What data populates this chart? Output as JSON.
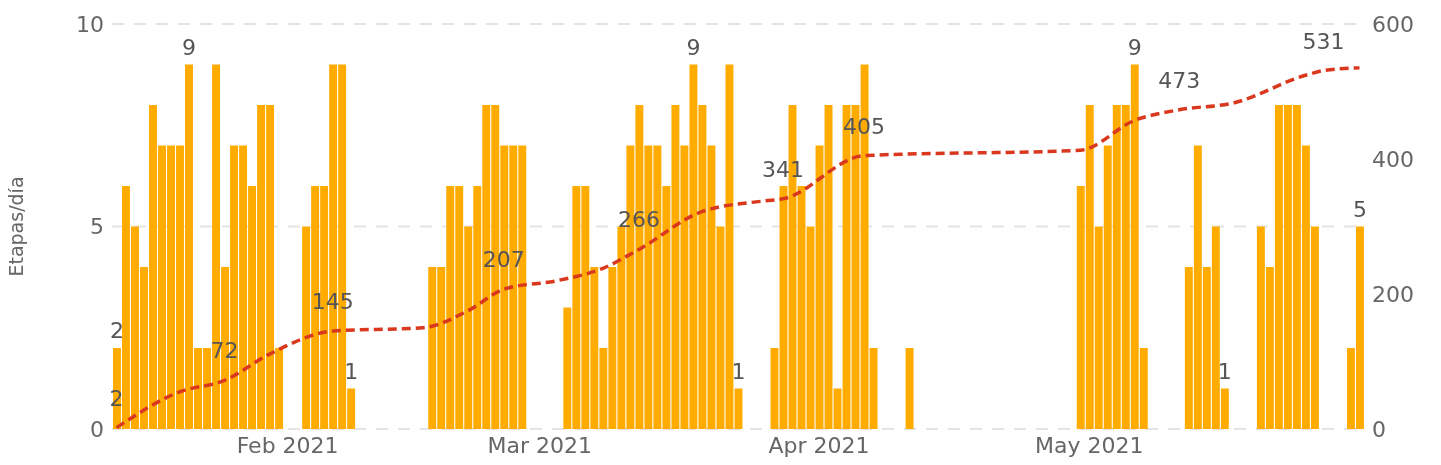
{
  "chart_data": {
    "type": "bar",
    "ylabel": "Etapas/día",
    "x": [
      "2021-01-13",
      "2021-01-14",
      "2021-01-15",
      "2021-01-16",
      "2021-01-17",
      "2021-01-18",
      "2021-01-19",
      "2021-01-20",
      "2021-01-21",
      "2021-01-22",
      "2021-01-23",
      "2021-01-24",
      "2021-01-25",
      "2021-01-26",
      "2021-01-27",
      "2021-01-28",
      "2021-01-29",
      "2021-01-30",
      "2021-01-31",
      "2021-02-03",
      "2021-02-04",
      "2021-02-05",
      "2021-02-06",
      "2021-02-07",
      "2021-02-08",
      "2021-02-17",
      "2021-02-18",
      "2021-02-19",
      "2021-02-20",
      "2021-02-21",
      "2021-02-22",
      "2021-02-23",
      "2021-02-24",
      "2021-02-25",
      "2021-02-26",
      "2021-02-27",
      "2021-03-04",
      "2021-03-05",
      "2021-03-06",
      "2021-03-07",
      "2021-03-08",
      "2021-03-09",
      "2021-03-10",
      "2021-03-11",
      "2021-03-12",
      "2021-03-13",
      "2021-03-14",
      "2021-03-15",
      "2021-03-16",
      "2021-03-17",
      "2021-03-18",
      "2021-03-19",
      "2021-03-20",
      "2021-03-21",
      "2021-03-22",
      "2021-03-23",
      "2021-03-27",
      "2021-03-28",
      "2021-03-29",
      "2021-03-30",
      "2021-03-31",
      "2021-04-01",
      "2021-04-02",
      "2021-04-03",
      "2021-04-04",
      "2021-04-05",
      "2021-04-06",
      "2021-04-07",
      "2021-04-11",
      "2021-04-30",
      "2021-05-01",
      "2021-05-02",
      "2021-05-03",
      "2021-05-04",
      "2021-05-05",
      "2021-05-06",
      "2021-05-07",
      "2021-05-12",
      "2021-05-13",
      "2021-05-14",
      "2021-05-15",
      "2021-05-16",
      "2021-05-20",
      "2021-05-21",
      "2021-05-22",
      "2021-05-23",
      "2021-05-24",
      "2021-05-25",
      "2021-05-26",
      "2021-05-30",
      "2021-05-31"
    ],
    "series": [
      {
        "color": "#ffab00",
        "values": [
          2,
          6,
          5,
          4,
          8,
          7,
          7,
          7,
          9,
          2,
          2,
          9,
          4,
          7,
          7,
          6,
          8,
          8,
          2,
          5,
          6,
          6,
          9,
          9,
          1,
          4,
          4,
          6,
          6,
          5,
          6,
          8,
          8,
          7,
          7,
          7,
          3,
          6,
          6,
          4,
          2,
          4,
          5,
          7,
          8,
          7,
          7,
          6,
          8,
          7,
          9,
          8,
          7,
          5,
          9,
          1,
          2,
          6,
          8,
          6,
          5,
          7,
          8,
          1,
          8,
          8,
          9,
          2,
          2,
          6,
          8,
          5,
          7,
          8,
          8,
          9,
          2,
          4,
          7,
          4,
          5,
          1,
          5,
          4,
          8,
          8,
          8,
          7,
          5,
          2,
          5
        ],
        "value_labels": [
          "2",
          null,
          null,
          null,
          null,
          null,
          null,
          null,
          "9",
          null,
          null,
          null,
          null,
          null,
          null,
          null,
          null,
          null,
          null,
          null,
          null,
          null,
          null,
          null,
          "1",
          null,
          null,
          null,
          null,
          null,
          null,
          null,
          null,
          null,
          null,
          null,
          null,
          null,
          null,
          null,
          null,
          null,
          null,
          null,
          null,
          null,
          null,
          null,
          null,
          null,
          "9",
          null,
          null,
          null,
          null,
          "1",
          null,
          null,
          null,
          null,
          null,
          null,
          null,
          null,
          null,
          null,
          null,
          null,
          null,
          null,
          null,
          null,
          null,
          null,
          null,
          "9",
          null,
          null,
          null,
          null,
          null,
          "1",
          null,
          null,
          null,
          null,
          null,
          null,
          null,
          null,
          "5"
        ]
      },
      {
        "type": "line",
        "axis": "y2",
        "color": "#d9381e",
        "line_style": "dashed",
        "x": [
          "2021-01-13",
          "2021-01-20",
          "2021-01-25",
          "2021-01-30",
          "2021-02-06",
          "2021-02-16",
          "2021-02-21",
          "2021-02-25",
          "2021-03-03",
          "2021-03-08",
          "2021-03-12",
          "2021-03-19",
          "2021-03-26",
          "2021-03-28",
          "2021-04-06",
          "2021-04-30",
          "2021-05-06",
          "2021-05-11",
          "2021-05-17",
          "2021-05-25",
          "2021-05-27",
          "2021-05-31"
        ],
        "values": [
          2,
          55,
          72,
          111,
          145,
          150,
          175,
          207,
          220,
          238,
          266,
          322,
          338,
          341,
          405,
          413,
          457,
          473,
          483,
          524,
          531,
          535
        ],
        "value_labels": [
          "2",
          null,
          "72",
          null,
          "145",
          null,
          null,
          "207",
          null,
          null,
          "266",
          null,
          null,
          "341",
          "405",
          null,
          null,
          "473",
          null,
          null,
          "531",
          null
        ]
      }
    ],
    "xlim": [
      "2021-01-12T12:00",
      "2021-05-31T12:00"
    ],
    "xticks": [
      {
        "value": "2021-02-01",
        "label": "Feb 2021"
      },
      {
        "value": "2021-03-01",
        "label": "Mar 2021"
      },
      {
        "value": "2021-04-01",
        "label": "Apr 2021"
      },
      {
        "value": "2021-05-01",
        "label": "May 2021"
      }
    ],
    "ylim": [
      0,
      10
    ],
    "yticks": [
      0,
      5,
      10
    ],
    "y2lim": [
      0,
      600
    ],
    "y2ticks": [
      0,
      200,
      400,
      600
    ],
    "grid": "y",
    "legend": false,
    "marker": "none"
  }
}
